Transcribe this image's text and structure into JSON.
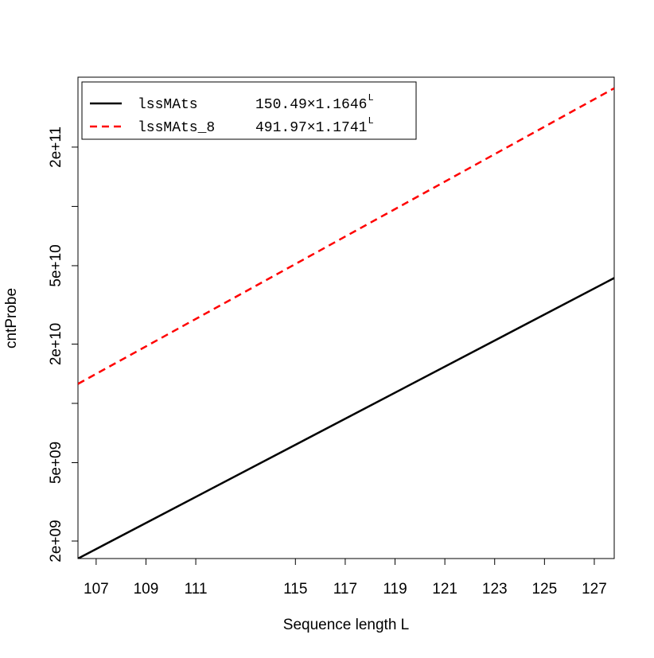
{
  "chart_data": {
    "type": "line",
    "x_label": "Sequence length L",
    "y_label": "cntProbe",
    "x": [
      106.27,
      127.8
    ],
    "series": [
      {
        "name": "lssMAts",
        "formula": "150.49×1.1646",
        "exponent": "L",
        "color": "#000000",
        "dash": "solid",
        "values": [
          1630000000,
          43300000000
        ]
      },
      {
        "name": "lssMAts_8",
        "formula": "491.97×1.1741",
        "exponent": "L",
        "color": "#ff0000",
        "dash": "dashed",
        "values": [
          12560000000,
          398000000000
        ]
      }
    ],
    "xlim": [
      106.27,
      127.8
    ],
    "xticks": [
      107,
      109,
      111,
      115,
      117,
      119,
      121,
      123,
      125,
      127
    ],
    "ylim": [
      1630000000,
      453000000000
    ],
    "ylog": true,
    "yticks": [
      {
        "value": 2000000000,
        "label": "2e+09"
      },
      {
        "value": 5000000000,
        "label": "5e+09"
      },
      {
        "value": 20000000000,
        "label": "2e+10"
      },
      {
        "value": 50000000000,
        "label": "5e+10"
      },
      {
        "value": 200000000000,
        "label": "2e+11"
      }
    ],
    "yminor_ticks": [
      10000000000,
      100000000000
    ],
    "legend": "top-left"
  }
}
